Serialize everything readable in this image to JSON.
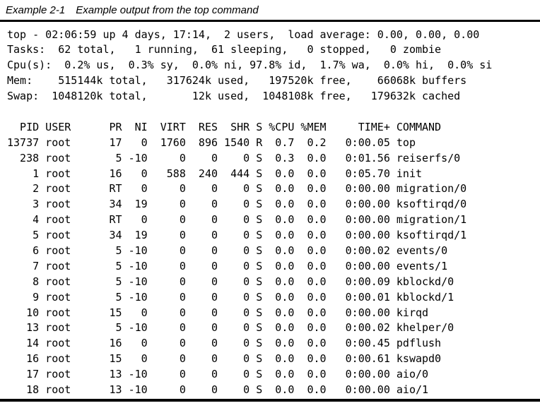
{
  "caption": {
    "label": "Example 2-1",
    "title": "Example output from the top command"
  },
  "terminal": {
    "summary_lines": [
      "top - 02:06:59 up 4 days, 17:14,  2 users,  load average: 0.00, 0.00, 0.00",
      "Tasks:  62 total,   1 running,  61 sleeping,   0 stopped,   0 zombie",
      "Cpu(s):  0.2% us,  0.3% sy,  0.0% ni, 97.8% id,  1.7% wa,  0.0% hi,  0.0% si",
      "Mem:    515144k total,   317624k used,   197520k free,    66068k buffers",
      "Swap:  1048120k total,       12k used,  1048108k free,   179632k cached"
    ],
    "uptime": {
      "time": "02:06:59",
      "up": "4 days, 17:14",
      "users": "2",
      "load_average": [
        "0.00",
        "0.00",
        "0.00"
      ]
    },
    "process_table": {
      "columns": [
        "PID",
        "USER",
        "PR",
        "NI",
        "VIRT",
        "RES",
        "SHR",
        "S",
        "%CPU",
        "%MEM",
        "TIME+",
        "COMMAND"
      ],
      "rows": [
        [
          "13737",
          "root",
          "17",
          "0",
          "1760",
          "896",
          "1540",
          "R",
          "0.7",
          "0.2",
          "0:00.05",
          "top"
        ],
        [
          "238",
          "root",
          "5",
          "-10",
          "0",
          "0",
          "0",
          "S",
          "0.3",
          "0.0",
          "0:01.56",
          "reiserfs/0"
        ],
        [
          "1",
          "root",
          "16",
          "0",
          "588",
          "240",
          "444",
          "S",
          "0.0",
          "0.0",
          "0:05.70",
          "init"
        ],
        [
          "2",
          "root",
          "RT",
          "0",
          "0",
          "0",
          "0",
          "S",
          "0.0",
          "0.0",
          "0:00.00",
          "migration/0"
        ],
        [
          "3",
          "root",
          "34",
          "19",
          "0",
          "0",
          "0",
          "S",
          "0.0",
          "0.0",
          "0:00.00",
          "ksoftirqd/0"
        ],
        [
          "4",
          "root",
          "RT",
          "0",
          "0",
          "0",
          "0",
          "S",
          "0.0",
          "0.0",
          "0:00.00",
          "migration/1"
        ],
        [
          "5",
          "root",
          "34",
          "19",
          "0",
          "0",
          "0",
          "S",
          "0.0",
          "0.0",
          "0:00.00",
          "ksoftirqd/1"
        ],
        [
          "6",
          "root",
          "5",
          "-10",
          "0",
          "0",
          "0",
          "S",
          "0.0",
          "0.0",
          "0:00.02",
          "events/0"
        ],
        [
          "7",
          "root",
          "5",
          "-10",
          "0",
          "0",
          "0",
          "S",
          "0.0",
          "0.0",
          "0:00.00",
          "events/1"
        ],
        [
          "8",
          "root",
          "5",
          "-10",
          "0",
          "0",
          "0",
          "S",
          "0.0",
          "0.0",
          "0:00.09",
          "kblockd/0"
        ],
        [
          "9",
          "root",
          "5",
          "-10",
          "0",
          "0",
          "0",
          "S",
          "0.0",
          "0.0",
          "0:00.01",
          "kblockd/1"
        ],
        [
          "10",
          "root",
          "15",
          "0",
          "0",
          "0",
          "0",
          "S",
          "0.0",
          "0.0",
          "0:00.00",
          "kirqd"
        ],
        [
          "13",
          "root",
          "5",
          "-10",
          "0",
          "0",
          "0",
          "S",
          "0.0",
          "0.0",
          "0:00.02",
          "khelper/0"
        ],
        [
          "14",
          "root",
          "16",
          "0",
          "0",
          "0",
          "0",
          "S",
          "0.0",
          "0.0",
          "0:00.45",
          "pdflush"
        ],
        [
          "16",
          "root",
          "15",
          "0",
          "0",
          "0",
          "0",
          "S",
          "0.0",
          "0.0",
          "0:00.61",
          "kswapd0"
        ],
        [
          "17",
          "root",
          "13",
          "-10",
          "0",
          "0",
          "0",
          "S",
          "0.0",
          "0.0",
          "0:00.00",
          "aio/0"
        ],
        [
          "18",
          "root",
          "13",
          "-10",
          "0",
          "0",
          "0",
          "S",
          "0.0",
          "0.0",
          "0:00.00",
          "aio/1"
        ]
      ]
    }
  },
  "colors": {
    "text": "#000000",
    "background": "#ffffff",
    "rule": "#000000"
  }
}
